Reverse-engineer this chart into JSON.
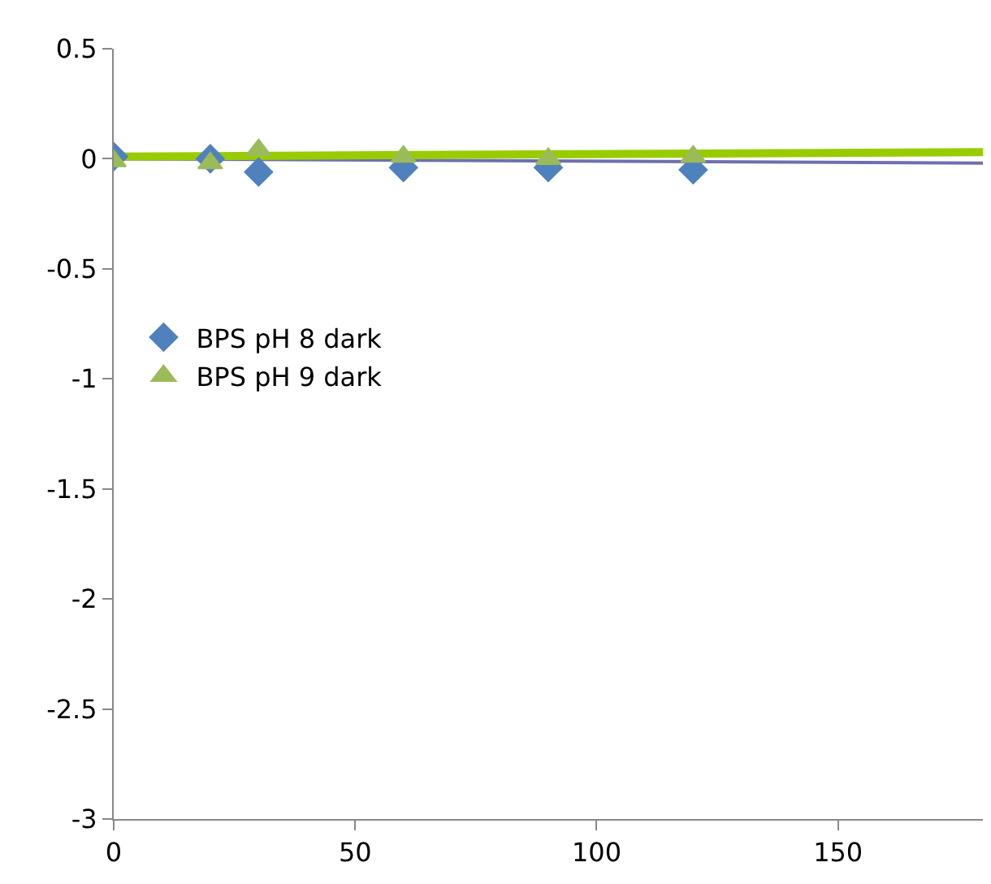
{
  "chart_data": {
    "type": "scatter",
    "xlim": [
      0,
      180
    ],
    "xticks": [
      0,
      50,
      100,
      150
    ],
    "ylim": [
      -3,
      0.5
    ],
    "yticks": [
      -3,
      -2.5,
      -2,
      -1.5,
      -1,
      -0.5,
      0,
      0.5
    ],
    "legend": "left",
    "series": [
      {
        "name": "BPS pH 8 dark",
        "color": "#4f81bd",
        "marker": "diamond",
        "x": [
          0,
          20,
          30,
          60,
          90,
          120
        ],
        "values": [
          0.01,
          0,
          -0.06,
          -0.04,
          -0.04,
          -0.05
        ]
      },
      {
        "name": "BPS pH 9 dark",
        "color": "#9bbb59",
        "marker": "triangle",
        "x": [
          0,
          20,
          30,
          60,
          90,
          120
        ],
        "values": [
          -0.01,
          -0.02,
          0.04,
          0.01,
          0,
          0.01
        ]
      },
      {
        "type": "line",
        "color": "#6f6faf",
        "x": [
          0,
          180
        ],
        "values": [
          0,
          -0.02
        ]
      },
      {
        "type": "line",
        "color": "#99cc00",
        "x": [
          0,
          180
        ],
        "values": [
          0.01,
          0.03
        ]
      }
    ]
  }
}
